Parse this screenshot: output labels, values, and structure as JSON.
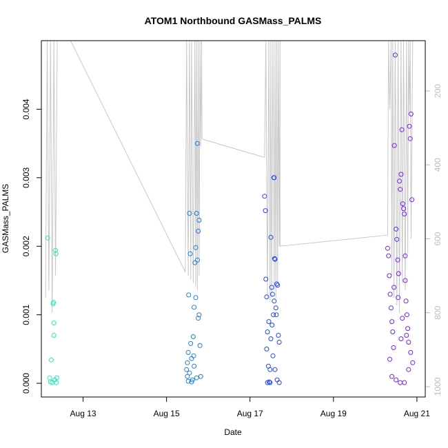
{
  "chart_data": {
    "type": "scatter",
    "title": "ATOM1 Northbound GASMass_PALMS",
    "xlabel": "Date",
    "ylabel": "GASMass_PALMS",
    "x_ticks": [
      {
        "label": "Aug 13",
        "day": 13
      },
      {
        "label": "Aug 15",
        "day": 15
      },
      {
        "label": "Aug 17",
        "day": 17
      },
      {
        "label": "Aug 19",
        "day": 19
      },
      {
        "label": "Aug 21",
        "day": 21
      }
    ],
    "xlim_days": [
      12.0,
      21.2
    ],
    "y_ticks": [
      "0.000",
      "0.001",
      "0.002",
      "0.003",
      "0.004"
    ],
    "ylim": [
      -0.0002,
      0.005
    ],
    "right_axis": {
      "ticks": [
        "200",
        "400",
        "600",
        "800",
        "1000"
      ],
      "range": [
        64,
        1028
      ],
      "color": "#bdbdbd"
    },
    "grid": false,
    "colors": {
      "point_start": "#22f0b0",
      "point_mid": "#1b46f0",
      "point_end": "#7a1cf0",
      "line": "#c8c8c8",
      "axis": "#000000"
    },
    "series": [
      {
        "kind": "points",
        "points": [
          [
            12.15,
            0.00212
          ],
          [
            12.2,
            8e-05
          ],
          [
            12.22,
            2e-05
          ],
          [
            12.24,
            0.00034
          ],
          [
            12.26,
            1e-05
          ],
          [
            12.28,
            0.00116
          ],
          [
            12.29,
            0.00118
          ],
          [
            12.3,
            0.00088
          ],
          [
            12.3,
            0.0007
          ],
          [
            12.32,
            5e-05
          ],
          [
            12.34,
            0.00194
          ],
          [
            12.35,
            0.00189
          ],
          [
            12.36,
            1e-05
          ],
          [
            12.37,
            8e-05
          ],
          [
            15.48,
            0.0002
          ],
          [
            15.5,
            0.0001
          ],
          [
            15.52,
            3e-05
          ],
          [
            15.53,
            0.00129
          ],
          [
            15.55,
            0.00248
          ],
          [
            15.57,
            0.00189
          ],
          [
            15.58,
            0.00058
          ],
          [
            15.6,
            0.00036
          ],
          [
            15.62,
            5e-05
          ],
          [
            15.64,
            0.00068
          ],
          [
            15.66,
            0.00111
          ],
          [
            15.68,
            0.00176
          ],
          [
            15.7,
            0.00198
          ],
          [
            15.72,
            0.00248
          ],
          [
            15.74,
            0.0035
          ],
          [
            15.76,
            0.00222
          ],
          [
            15.78,
            0.00238
          ],
          [
            15.78,
            0.001
          ],
          [
            15.8,
            0.00055
          ],
          [
            15.82,
            0.0001
          ],
          [
            15.5,
            0.0003
          ],
          [
            15.55,
            0.00015
          ],
          [
            15.6,
            2e-05
          ],
          [
            15.65,
            0.0004
          ],
          [
            15.7,
            0.00125
          ],
          [
            15.74,
            0.0018
          ],
          [
            15.76,
            0.00095
          ],
          [
            15.52,
            0.00045
          ],
          [
            15.66,
            0.00025
          ],
          [
            15.72,
            8e-05
          ],
          [
            17.35,
            0.00273
          ],
          [
            17.37,
            0.00252
          ],
          [
            17.38,
            0.00152
          ],
          [
            17.4,
            0.00126
          ],
          [
            17.42,
            0.00075
          ],
          [
            17.44,
            0.00025
          ],
          [
            17.46,
            2e-05
          ],
          [
            17.48,
            0.0002
          ],
          [
            17.5,
            0.00213
          ],
          [
            17.52,
            0.0014
          ],
          [
            17.54,
            0.0013
          ],
          [
            17.56,
            0.001
          ],
          [
            17.57,
            0.003
          ],
          [
            17.58,
            0.003
          ],
          [
            17.59,
            0.00182
          ],
          [
            17.6,
            0.00181
          ],
          [
            17.62,
            0.0011
          ],
          [
            17.64,
            0.00145
          ],
          [
            17.66,
            0.00143
          ],
          [
            17.68,
            0.0007
          ],
          [
            17.7,
            0.0006
          ],
          [
            17.4,
            0.0005
          ],
          [
            17.45,
            0.0009
          ],
          [
            17.5,
            0.00065
          ],
          [
            17.55,
            0.0004
          ],
          [
            17.6,
            0.0002
          ],
          [
            17.65,
            5e-05
          ],
          [
            17.7,
            1e-05
          ],
          [
            17.42,
            1e-05
          ],
          [
            17.48,
            1e-05
          ],
          [
            17.53,
            0.00085
          ],
          [
            17.58,
            0.0012
          ],
          [
            17.63,
            0.001
          ],
          [
            20.3,
            0.00197
          ],
          [
            20.32,
            0.00186
          ],
          [
            20.34,
            0.00157
          ],
          [
            20.36,
            0.0013
          ],
          [
            20.38,
            0.0011
          ],
          [
            20.4,
            0.0009
          ],
          [
            20.42,
            0.00075
          ],
          [
            20.44,
            0.00052
          ],
          [
            20.46,
            0.00347
          ],
          [
            20.48,
            0.00479
          ],
          [
            20.5,
            0.00225
          ],
          [
            20.52,
            0.0021
          ],
          [
            20.54,
            0.0018
          ],
          [
            20.56,
            0.0016
          ],
          [
            20.58,
            0.00295
          ],
          [
            20.6,
            0.00283
          ],
          [
            20.62,
            0.00305
          ],
          [
            20.64,
            0.0037
          ],
          [
            20.66,
            0.00262
          ],
          [
            20.68,
            0.00255
          ],
          [
            20.7,
            0.00247
          ],
          [
            20.72,
            0.00186
          ],
          [
            20.74,
            0.0012
          ],
          [
            20.76,
            0.001
          ],
          [
            20.78,
            0.0008
          ],
          [
            20.8,
            0.0006
          ],
          [
            20.82,
            0.00375
          ],
          [
            20.84,
            0.00357
          ],
          [
            20.86,
            0.00393
          ],
          [
            20.88,
            0.00268
          ],
          [
            20.9,
            0.0003
          ],
          [
            20.4,
            0.0001
          ],
          [
            20.5,
            5e-05
          ],
          [
            20.6,
            1e-05
          ],
          [
            20.7,
            1e-05
          ],
          [
            20.8,
            0.0002
          ],
          [
            20.45,
            0.0014
          ],
          [
            20.55,
            0.00125
          ],
          [
            20.65,
            0.00095
          ],
          [
            20.75,
            0.0007
          ],
          [
            20.85,
            0.00045
          ],
          [
            20.35,
            0.00035
          ],
          [
            20.62,
            0.00065
          ],
          [
            20.72,
            0.0015
          ]
        ]
      },
      {
        "kind": "line",
        "axis": "right",
        "points": [
          [
            12.1,
            760
          ],
          [
            12.14,
            64
          ],
          [
            12.18,
            740
          ],
          [
            12.22,
            64
          ],
          [
            12.26,
            800
          ],
          [
            12.3,
            64
          ],
          [
            12.34,
            700
          ],
          [
            12.38,
            64
          ],
          [
            12.7,
            64
          ],
          [
            15.45,
            690
          ],
          [
            15.48,
            64
          ],
          [
            15.52,
            700
          ],
          [
            15.55,
            64
          ],
          [
            15.58,
            710
          ],
          [
            15.6,
            64
          ],
          [
            15.64,
            720
          ],
          [
            15.68,
            64
          ],
          [
            15.7,
            730
          ],
          [
            15.72,
            64
          ],
          [
            15.74,
            740
          ],
          [
            15.76,
            64
          ],
          [
            15.78,
            700
          ],
          [
            15.8,
            64
          ],
          [
            15.82,
            350
          ],
          [
            15.84,
            64
          ],
          [
            15.85,
            330
          ],
          [
            17.35,
            380
          ],
          [
            17.38,
            64
          ],
          [
            17.42,
            760
          ],
          [
            17.45,
            64
          ],
          [
            17.48,
            770
          ],
          [
            17.5,
            64
          ],
          [
            17.52,
            760
          ],
          [
            17.55,
            64
          ],
          [
            17.58,
            740
          ],
          [
            17.6,
            64
          ],
          [
            17.62,
            760
          ],
          [
            17.64,
            64
          ],
          [
            17.66,
            720
          ],
          [
            17.68,
            64
          ],
          [
            17.7,
            620
          ],
          [
            17.72,
            64
          ],
          [
            17.72,
            620
          ],
          [
            20.3,
            590
          ],
          [
            20.32,
            64
          ],
          [
            20.35,
            250
          ],
          [
            20.38,
            64
          ],
          [
            20.4,
            700
          ],
          [
            20.42,
            64
          ],
          [
            20.45,
            760
          ],
          [
            20.48,
            64
          ],
          [
            20.52,
            780
          ],
          [
            20.55,
            64
          ],
          [
            20.58,
            800
          ],
          [
            20.62,
            64
          ],
          [
            20.65,
            720
          ],
          [
            20.68,
            64
          ],
          [
            20.72,
            740
          ],
          [
            20.75,
            64
          ],
          [
            20.78,
            640
          ],
          [
            20.8,
            64
          ],
          [
            20.82,
            260
          ],
          [
            20.84,
            64
          ],
          [
            20.86,
            600
          ],
          [
            20.9,
            64
          ]
        ]
      }
    ]
  }
}
